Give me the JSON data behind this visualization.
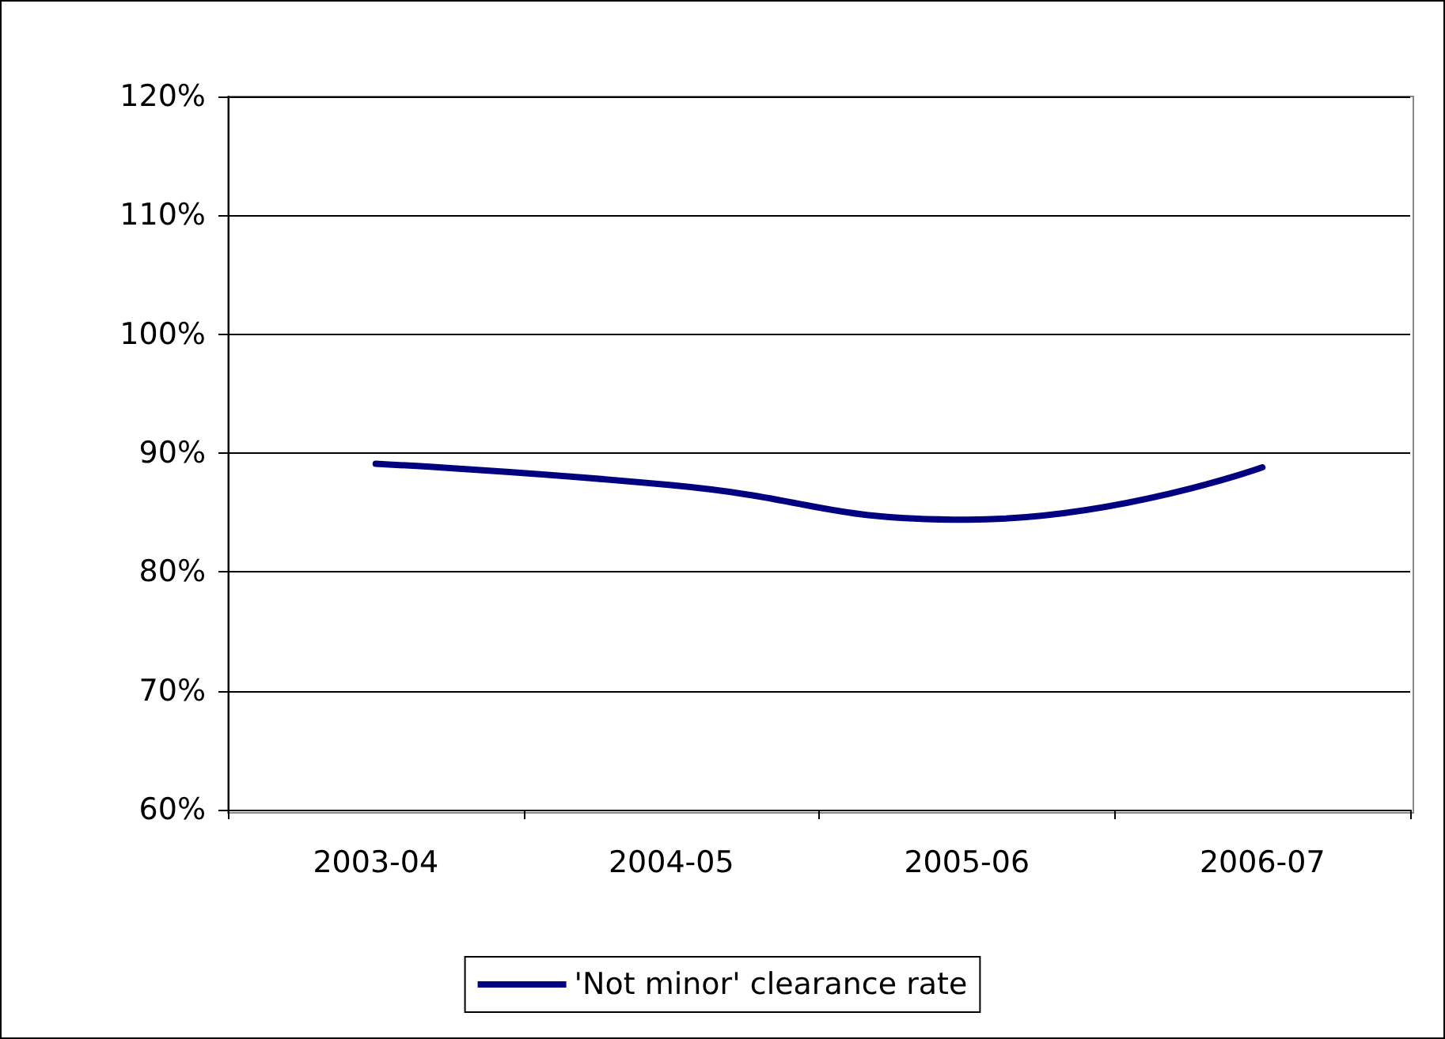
{
  "chart_data": {
    "type": "line",
    "categories": [
      "2003-04",
      "2004-05",
      "2005-06",
      "2006-07"
    ],
    "series": [
      {
        "name": "'Not minor' clearance rate",
        "color": "#000080",
        "values": [
          89.1,
          87.3,
          84.4,
          88.8
        ]
      }
    ],
    "ylim": [
      60,
      120
    ],
    "yticks": [
      {
        "value": 60,
        "label": "60%"
      },
      {
        "value": 70,
        "label": "70%"
      },
      {
        "value": 80,
        "label": "80%"
      },
      {
        "value": 90,
        "label": "90%"
      },
      {
        "value": 100,
        "label": "100%"
      },
      {
        "value": 110,
        "label": "110%"
      },
      {
        "value": 120,
        "label": "120%"
      }
    ],
    "grid": "y",
    "legend": "bottom",
    "marker": "none",
    "line_style": "solid"
  }
}
